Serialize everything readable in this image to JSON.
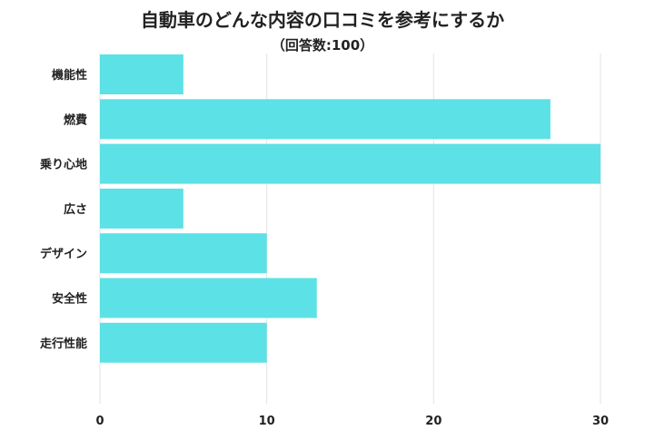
{
  "chart_data": {
    "type": "bar",
    "orientation": "horizontal",
    "title": "自動車のどんな内容の口コミを参考にするか",
    "subtitle": "（回答数:100）",
    "categories": [
      "機能性",
      "燃費",
      "乗り心地",
      "広さ",
      "デザイン",
      "安全性",
      "走行性能"
    ],
    "values": [
      5,
      27,
      30,
      5,
      10,
      13,
      10
    ],
    "xlim": [
      0,
      30
    ],
    "xticks": [
      "0",
      "10",
      "20",
      "30"
    ],
    "xlabel": "",
    "ylabel": "",
    "grid": true,
    "bar_color": "#5ce1e6"
  }
}
